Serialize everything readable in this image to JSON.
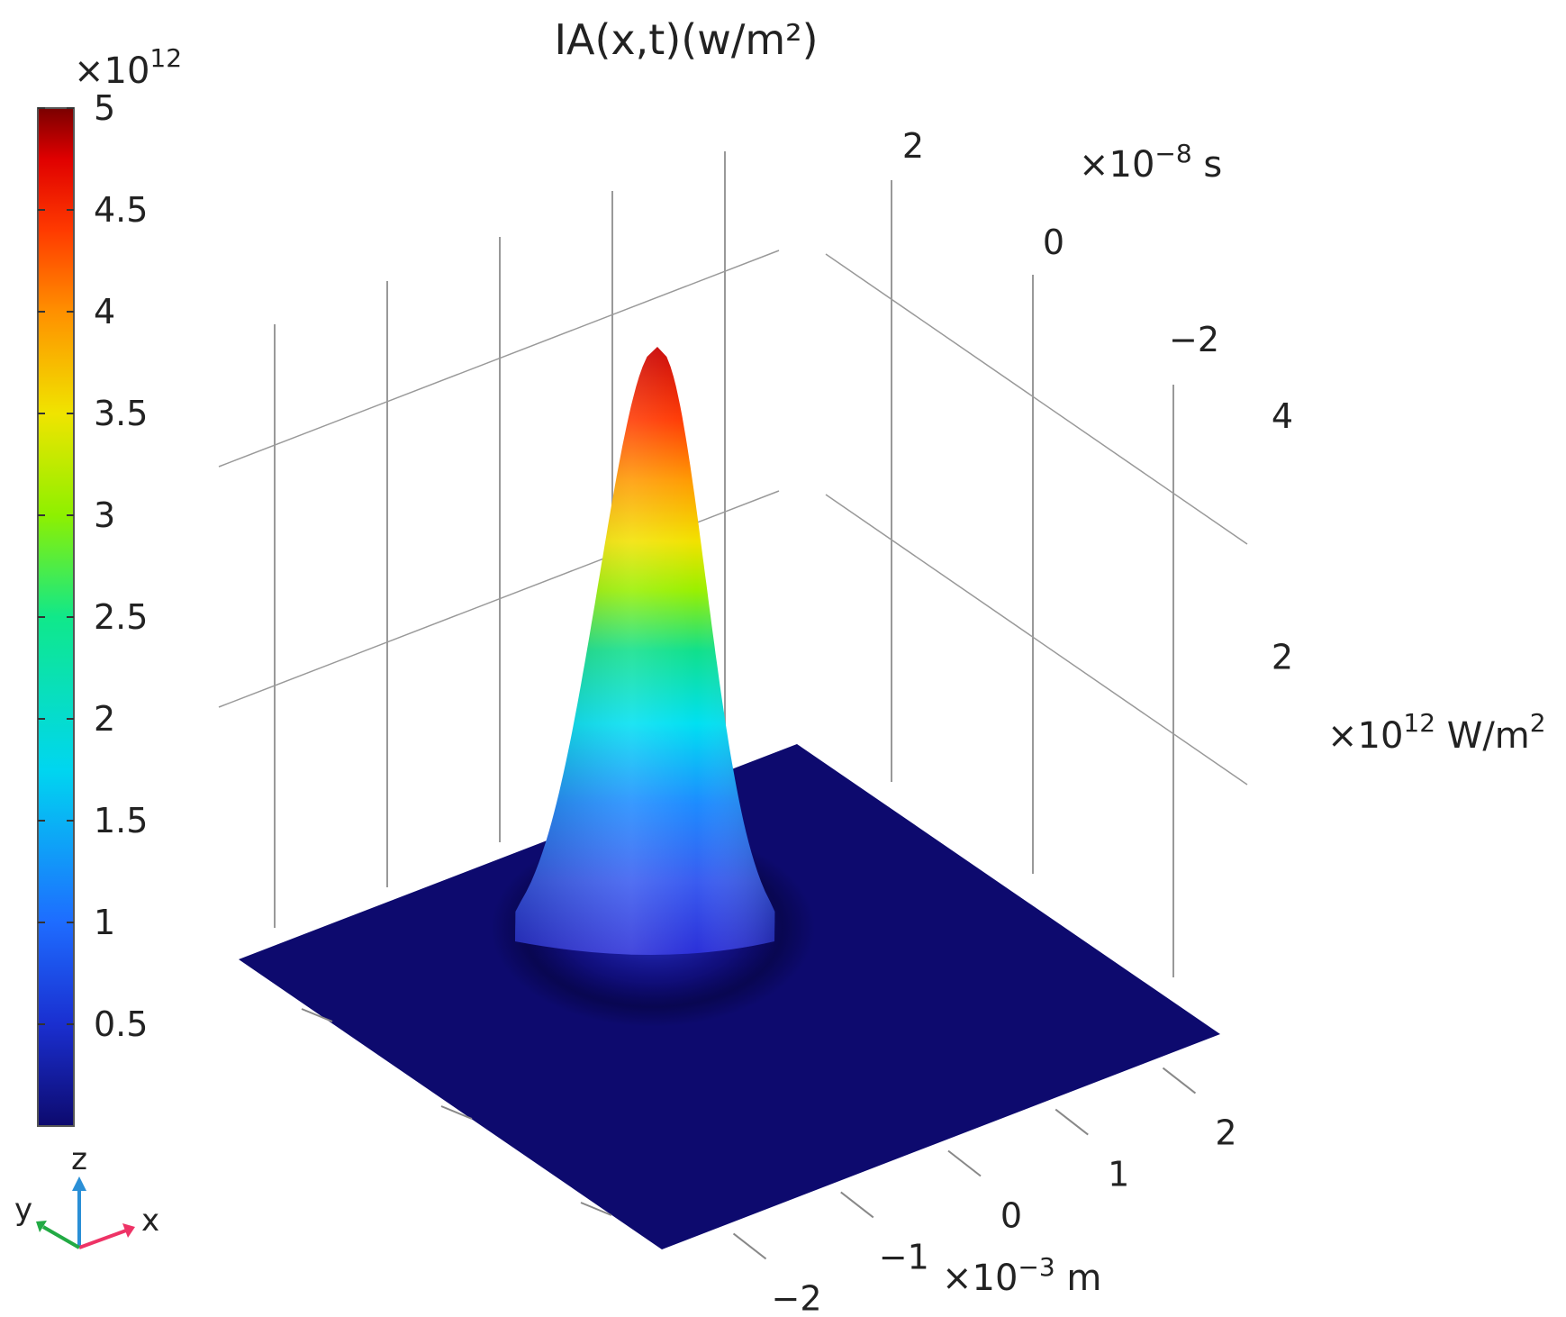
{
  "chart_data": {
    "type": "surface3d",
    "title": "IA(x,t)(w/m²)",
    "colorbar": {
      "exponent": "×10",
      "exponent_power": "12",
      "min": 0,
      "max": 5,
      "ticks": [
        "5",
        "4.5",
        "4",
        "3.5",
        "3",
        "2.5",
        "2",
        "1.5",
        "1",
        "0.5"
      ],
      "tick_values": [
        5,
        4.5,
        4,
        3.5,
        3,
        2.5,
        2,
        1.5,
        1,
        0.5
      ],
      "colormap": [
        "#0d0a6e",
        "#1a2fd0",
        "#1e6cff",
        "#00d6f0",
        "#10e88a",
        "#8ef000",
        "#f0e400",
        "#ff9000",
        "#ff3a00",
        "#e00000",
        "#7a0000"
      ]
    },
    "x_axis": {
      "unit_prefix": "×10",
      "unit_power": "−3",
      "unit_suffix": " m",
      "ticks": [
        "−2",
        "−1",
        "0",
        "1",
        "2"
      ],
      "tick_values": [
        -2,
        -1,
        0,
        1,
        2
      ],
      "range": [
        -2.6,
        2.6
      ]
    },
    "t_axis": {
      "unit_prefix": "×10",
      "unit_power": "−8",
      "unit_suffix": " s",
      "ticks": [
        "2",
        "0",
        "−2"
      ],
      "tick_values": [
        2,
        0,
        -2
      ],
      "range": [
        -3.5,
        3.5
      ]
    },
    "z_axis": {
      "unit_prefix": "×10",
      "unit_power": "12",
      "unit_suffix": " W/m",
      "unit_suffix_power": "2",
      "ticks": [
        "2",
        "4"
      ],
      "tick_values": [
        2,
        4
      ],
      "range": [
        0,
        5
      ]
    },
    "peak": {
      "x": 0,
      "t": 0,
      "value": 5
    },
    "surface_color": "#0d0a6e",
    "orientation_triad": {
      "z_label": "z",
      "y_label": "y",
      "x_label": "x",
      "z_color": "#2a8fd6",
      "y_color": "#22aa44",
      "x_color": "#ee3366"
    }
  }
}
